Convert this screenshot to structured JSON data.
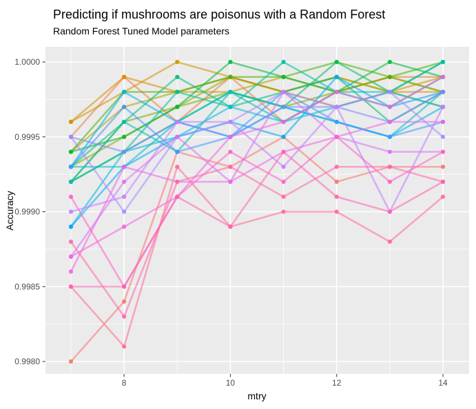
{
  "header": {
    "title": "Predicting if mushrooms are poisonus with a Random Forest",
    "subtitle": "Random Forest Tuned Model parameters"
  },
  "chart_data": {
    "type": "line",
    "title": "Predicting if mushrooms are poisonus with a Random Forest",
    "subtitle": "Random Forest Tuned Model parameters",
    "xlabel": "mtry",
    "ylabel": "Accuracy",
    "xlim": [
      7,
      14
    ],
    "ylim": [
      0.998,
      1.0
    ],
    "grid": true,
    "legend": "none",
    "panel_bg": "#EBEBEB",
    "grid_color": "#FFFFFF",
    "tick_label_color": "#4D4D4D",
    "tick_mark_color": "#333333",
    "x": [
      7,
      8,
      9,
      10,
      11,
      12,
      13,
      14
    ],
    "x_ticks": [
      {
        "label": "8",
        "value": 8
      },
      {
        "label": "10",
        "value": 10
      },
      {
        "label": "12",
        "value": 12
      },
      {
        "label": "14",
        "value": 14
      }
    ],
    "x_minor": [
      7,
      9,
      11,
      13
    ],
    "y_ticks": [
      {
        "label": "1.0000",
        "value": 1.0
      },
      {
        "label": "0.9995",
        "value": 0.9995
      },
      {
        "label": "0.9990",
        "value": 0.999
      },
      {
        "label": "0.9985",
        "value": 0.9985
      },
      {
        "label": "0.9980",
        "value": 0.998
      }
    ],
    "y_minor": [
      0.99975,
      0.99925,
      0.99875,
      0.99825
    ],
    "series": [
      {
        "color": "#F8766D",
        "values": [
          0.998,
          0.9984,
          0.9994,
          0.9993,
          0.9995,
          0.9992,
          0.9993,
          0.9993
        ]
      },
      {
        "color": "#EE8043",
        "values": [
          0.9995,
          0.9999,
          0.9996,
          0.9999,
          0.9996,
          0.9998,
          0.9999,
          0.9999
        ]
      },
      {
        "color": "#E08B00",
        "values": [
          0.9996,
          0.9999,
          0.9998,
          0.9999,
          0.9998,
          0.9997,
          0.9998,
          0.9998
        ]
      },
      {
        "color": "#CD9600",
        "values": [
          0.9996,
          0.9998,
          1.0,
          0.9999,
          0.9998,
          0.9999,
          0.9998,
          0.9999
        ]
      },
      {
        "color": "#B5A000",
        "values": [
          0.9994,
          0.9997,
          0.9998,
          0.9998,
          0.9999,
          0.9998,
          0.9999,
          0.9998
        ]
      },
      {
        "color": "#99A800",
        "values": [
          0.9993,
          0.9995,
          0.9997,
          0.9999,
          0.9998,
          0.9999,
          0.9998,
          0.9997
        ]
      },
      {
        "color": "#77AF00",
        "values": [
          0.9992,
          0.9996,
          0.9997,
          0.9998,
          0.9997,
          0.9998,
          0.9999,
          0.9998
        ]
      },
      {
        "color": "#45B500",
        "values": [
          0.9994,
          0.9998,
          0.9998,
          0.9999,
          0.9999,
          1.0,
          0.9999,
          1.0
        ]
      },
      {
        "color": "#00BA38",
        "values": [
          0.9994,
          0.9995,
          0.9997,
          1.0,
          0.9999,
          0.9998,
          1.0,
          0.9999
        ]
      },
      {
        "color": "#00BD5F",
        "values": [
          0.9992,
          0.9994,
          0.9996,
          0.9998,
          0.9997,
          1.0,
          0.9998,
          1.0
        ]
      },
      {
        "color": "#00BF7F",
        "values": [
          0.9993,
          0.9996,
          0.9999,
          0.9997,
          0.9998,
          0.9999,
          0.9996,
          0.9998
        ]
      },
      {
        "color": "#00C09B",
        "values": [
          0.9992,
          0.9994,
          0.9998,
          0.9997,
          1.0,
          0.9998,
          0.9997,
          0.9999
        ]
      },
      {
        "color": "#00C0B5",
        "values": [
          0.9992,
          0.9996,
          0.9994,
          0.9998,
          0.9996,
          0.9998,
          0.9998,
          1.0
        ]
      },
      {
        "color": "#00BECC",
        "values": [
          0.9993,
          0.9993,
          0.9996,
          0.9998,
          0.9997,
          0.9996,
          0.9995,
          0.9998
        ]
      },
      {
        "color": "#00BAE0",
        "values": [
          0.9989,
          0.9994,
          0.9995,
          0.9997,
          0.9996,
          0.9997,
          0.9998,
          0.9997
        ]
      },
      {
        "color": "#00B3F0",
        "values": [
          0.9993,
          0.9998,
          0.9996,
          0.9995,
          0.9997,
          0.9996,
          0.9995,
          0.9997
        ]
      },
      {
        "color": "#00A8FB",
        "values": [
          0.9989,
          0.9993,
          0.9995,
          0.9996,
          0.9995,
          0.9999,
          0.9997,
          0.9998
        ]
      },
      {
        "color": "#3F99FF",
        "values": [
          0.9993,
          0.9997,
          0.9994,
          0.9995,
          0.9998,
          0.9996,
          0.9995,
          0.9996
        ]
      },
      {
        "color": "#7C87FF",
        "values": [
          0.9995,
          0.9994,
          0.9996,
          0.9995,
          0.9997,
          0.9997,
          0.9996,
          0.9998
        ]
      },
      {
        "color": "#A58AFF",
        "values": [
          0.9995,
          0.999,
          0.9995,
          0.9996,
          0.9998,
          0.9997,
          0.9998,
          0.9995
        ]
      },
      {
        "color": "#C57CFF",
        "values": [
          0.999,
          0.9991,
          0.9996,
          0.9996,
          0.9993,
          0.9997,
          0.999,
          0.9997
        ]
      },
      {
        "color": "#DC6FF7",
        "values": [
          0.9987,
          0.9992,
          0.9995,
          0.9992,
          0.9998,
          0.9995,
          0.9994,
          0.9994
        ]
      },
      {
        "color": "#EC66E8",
        "values": [
          0.9986,
          0.9993,
          0.9992,
          0.9992,
          0.9994,
          0.9995,
          0.9996,
          0.9996
        ]
      },
      {
        "color": "#F763E0",
        "values": [
          0.9987,
          0.9989,
          0.9991,
          0.9995,
          0.9996,
          0.9998,
          0.9997,
          0.9999
        ]
      },
      {
        "color": "#FF61C7",
        "values": [
          0.9991,
          0.9985,
          0.9991,
          0.9994,
          0.9992,
          0.9995,
          0.9992,
          0.9994
        ]
      },
      {
        "color": "#FF66A8",
        "values": [
          0.9988,
          0.9983,
          0.9992,
          0.9993,
          0.9991,
          0.9993,
          0.9993,
          0.9992
        ]
      },
      {
        "color": "#FF6C91",
        "values": [
          0.9985,
          0.9981,
          0.9993,
          0.9989,
          0.999,
          0.999,
          0.9988,
          0.9991
        ]
      },
      {
        "color": "#FF62B0",
        "values": [
          0.9985,
          0.9985,
          0.9991,
          0.9989,
          0.9994,
          0.9991,
          0.999,
          0.9992
        ]
      }
    ]
  }
}
